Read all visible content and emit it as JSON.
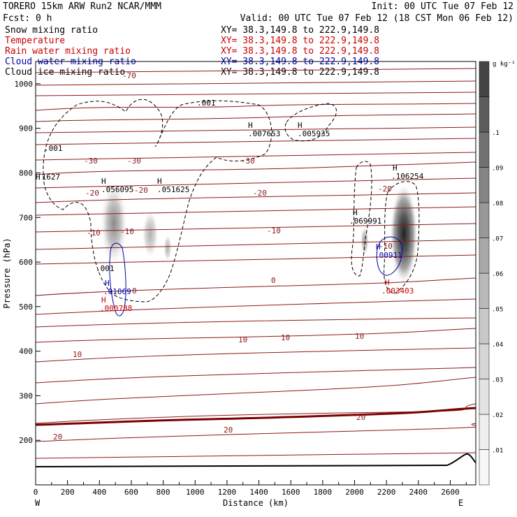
{
  "header": {
    "model": "TORERO  15km ARW   Run2    NCAR/MMM",
    "init": "Init: 00 UTC Tue 07 Feb 12",
    "fcst": "Fcst:    0 h",
    "valid": "Valid: 00 UTC Tue 07 Feb 12 (18 CST Mon 06 Feb 12)"
  },
  "legend": [
    {
      "name": "Snow mixing ratio",
      "xy": "XY=  38.3,149.8 to 222.9,149.8",
      "color": "#000000"
    },
    {
      "name": "Temperature",
      "xy": "XY=  38.3,149.8 to 222.9,149.8",
      "color": "#cc0000"
    },
    {
      "name": "Rain water mixing ratio",
      "xy": "XY=  38.3,149.8 to 222.9,149.8",
      "color": "#cc0000"
    },
    {
      "name": "Cloud water mixing ratio",
      "xy": "XY=  38.3,149.8 to 222.9,149.8",
      "color": "#0000aa"
    },
    {
      "name": "Cloud ice mixing ratio",
      "xy": "XY=  38.3,149.8 to 222.9,149.8",
      "color": "#000000"
    }
  ],
  "chart_data": {
    "type": "cross-section",
    "xlabel": "Distance (km)",
    "ylabel": "Pressure (hPa)",
    "xlim": [
      0,
      2760
    ],
    "ylim": [
      1050,
      100
    ],
    "x_ticks": [
      "0",
      "200",
      "400",
      "600",
      "800",
      "1000",
      "1200",
      "1400",
      "1600",
      "1800",
      "2000",
      "2200",
      "2400",
      "2600"
    ],
    "y_ticks": [
      "200",
      "300",
      "400",
      "500",
      "600",
      "700",
      "800",
      "900",
      "1000"
    ],
    "x_end_labels": {
      "left": "W",
      "right": "E"
    },
    "colorbar": {
      "unit": "g kg⁻¹",
      "labels": [
        ".01",
        ".02",
        ".03",
        ".04",
        ".05",
        ".06",
        ".07",
        ".08",
        ".09",
        ".1"
      ],
      "colors": [
        "#f7f7f7",
        "#efefef",
        "#e3e3e3",
        "#d6d6d6",
        "#c8c8c8",
        "#b9b9b9",
        "#a9a9a9",
        "#989898",
        "#858585",
        "#717171",
        "#5c5c5c",
        "#444444"
      ]
    },
    "temperature_labels": [
      "-70",
      "-30",
      "-30",
      "-30",
      "-20",
      "-20",
      "-20",
      "-20",
      "-10",
      "-10",
      "-10",
      "-10",
      "0",
      "0",
      "10",
      "10",
      "10",
      "10",
      "20",
      "20",
      "20"
    ],
    "maxima_labels": [
      {
        "mark": "H",
        "value": ".056095",
        "color": "#000000"
      },
      {
        "mark": "H",
        "value": ".051625",
        "color": "#000000"
      },
      {
        "mark": "H",
        "value": ".007653",
        "color": "#000000"
      },
      {
        "mark": "H",
        "value": ".005935",
        "color": "#000000"
      },
      {
        "mark": "H",
        "value": ".106254",
        "color": "#000000"
      },
      {
        "mark": "H",
        "value": ".069991",
        "color": "#000000"
      },
      {
        "mark": "H",
        "value": ".01069",
        "color": "#0000aa"
      },
      {
        "mark": "H",
        "value": ".000788",
        "color": "#cc0000"
      },
      {
        "mark": "H",
        "value": ".00911",
        "color": "#0000aa"
      },
      {
        "mark": "H",
        "value": ".003403",
        "color": "#cc0000"
      },
      {
        "mark": "",
        "value": ".001",
        "color": "#000000"
      },
      {
        "mark": "",
        "value": ".001",
        "color": "#000000"
      },
      {
        "mark": "",
        "value": ".001",
        "color": "#000000"
      },
      {
        "mark": "H",
        "value": ".1627",
        "color": "#000000"
      }
    ]
  }
}
